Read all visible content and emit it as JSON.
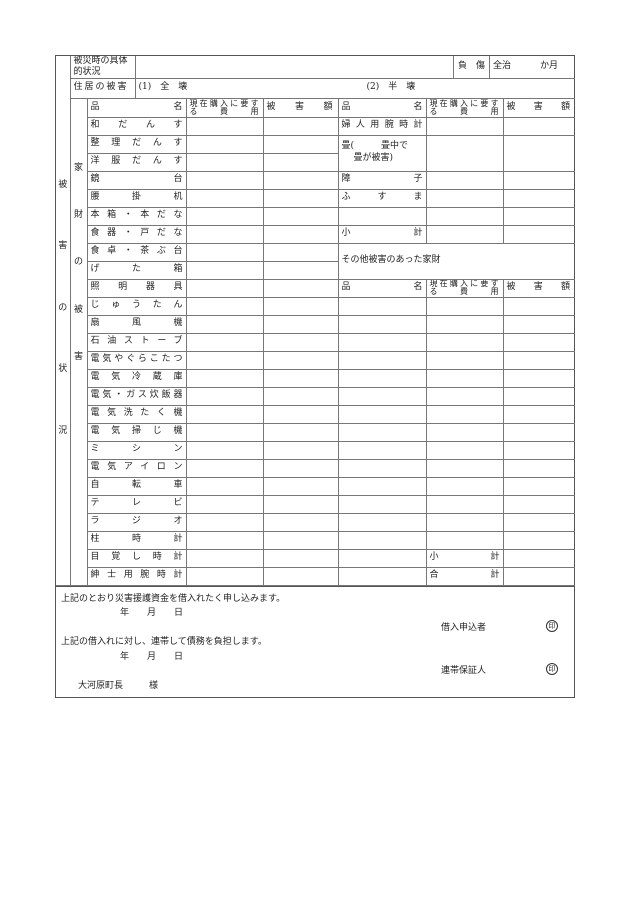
{
  "section_label": [
    "被",
    "害",
    "の",
    "状",
    "況"
  ],
  "household_label": [
    "家",
    "財",
    "の",
    "被",
    "害"
  ],
  "top": {
    "situation_label": "被災時の具体的状況",
    "injury_label": "負　傷",
    "recovery": "全治",
    "months": "か月"
  },
  "housing": {
    "label": "住居の被害",
    "option1": "(1)　全　壊",
    "option2": "(2)　半　壊"
  },
  "headers": {
    "item": "品名",
    "item_left": "品",
    "item_right": "名",
    "cost": "現在購入に要する費用",
    "damage": "被害額"
  },
  "left_items": [
    "和だんす",
    "整理だんす",
    "洋服だんす",
    "鏡台",
    "腰掛机",
    "本箱・本だな",
    "食器・戸だな",
    "食卓・茶ぶ台",
    "げた箱",
    "照明器具",
    "じゅうたん",
    "扇風機",
    "石油ストーブ",
    "電気やぐらこたつ",
    "電気冷蔵庫",
    "電気・ガス炊飯器",
    "電気洗たく機",
    "電気掃じ機",
    "ミシン",
    "電気アイロン",
    "自転車",
    "テレビ",
    "ラジオ",
    "柱時計",
    "目覚し時計",
    "紳士用腕時計"
  ],
  "right": {
    "ladies_watch": "婦人用腕時計",
    "tatami_line1": "畳(　　　畳中で",
    "tatami_line2": "畳が被害)",
    "shoji": "障子",
    "fusuma": "ふすま",
    "subtotal": "小計",
    "other_label": "その他被害のあった家財",
    "subtotal2": "小計",
    "total": "合計"
  },
  "footer": {
    "application_text": "上記のとおり災害援護資金を借入れたく申し込みます。",
    "date1": "年　　月　　日",
    "applicant": "借入申込者",
    "seal1": "印",
    "guarantee_text": "上記の借入れに対し、連帯して債務を負担します。",
    "date2": "年　　月　　日",
    "guarantor": "連帯保証人",
    "seal2": "印",
    "addressee": "大河原町長",
    "honorific": "様"
  }
}
